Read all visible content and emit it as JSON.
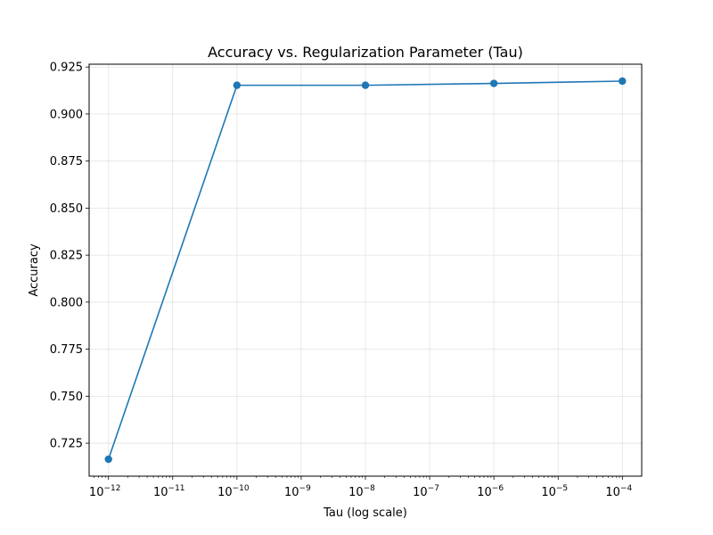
{
  "chart_data": {
    "type": "line",
    "title": "Accuracy vs. Regularization Parameter (Tau)",
    "xlabel": "Tau (log scale)",
    "ylabel": "Accuracy",
    "x_scale": "log",
    "xlim": [
      5e-13,
      0.0002
    ],
    "ylim": [
      0.7075,
      0.9265
    ],
    "grid": true,
    "legend": "none",
    "x_ticks": [
      {
        "value": 1e-12,
        "base": "10",
        "exp": "−12"
      },
      {
        "value": 1e-11,
        "base": "10",
        "exp": "−11"
      },
      {
        "value": 1e-10,
        "base": "10",
        "exp": "−10"
      },
      {
        "value": 1e-09,
        "base": "10",
        "exp": "−9"
      },
      {
        "value": 1e-08,
        "base": "10",
        "exp": "−8"
      },
      {
        "value": 1e-07,
        "base": "10",
        "exp": "−7"
      },
      {
        "value": 1e-06,
        "base": "10",
        "exp": "−6"
      },
      {
        "value": 1e-05,
        "base": "10",
        "exp": "−5"
      },
      {
        "value": 0.0001,
        "base": "10",
        "exp": "−4"
      }
    ],
    "y_ticks": [
      {
        "value": 0.725,
        "label": "0.725"
      },
      {
        "value": 0.75,
        "label": "0.750"
      },
      {
        "value": 0.775,
        "label": "0.775"
      },
      {
        "value": 0.8,
        "label": "0.800"
      },
      {
        "value": 0.825,
        "label": "0.825"
      },
      {
        "value": 0.85,
        "label": "0.850"
      },
      {
        "value": 0.875,
        "label": "0.875"
      },
      {
        "value": 0.9,
        "label": "0.900"
      },
      {
        "value": 0.925,
        "label": "0.925"
      }
    ],
    "series": [
      {
        "color": "#1f77b4",
        "marker": "circle",
        "x": [
          1e-12,
          1e-10,
          1e-08,
          1e-06,
          0.0001
        ],
        "y": [
          0.7165,
          0.9153,
          0.9153,
          0.9163,
          0.9175
        ]
      }
    ]
  }
}
